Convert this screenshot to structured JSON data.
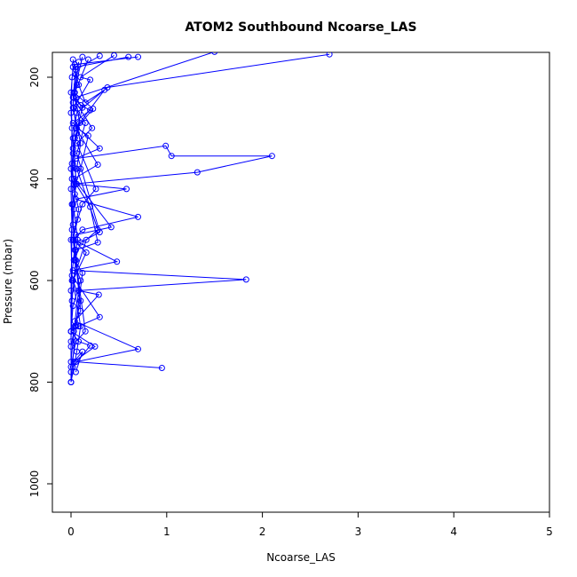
{
  "chart_data": {
    "type": "line",
    "title": "ATOM2 Southbound Ncoarse_LAS",
    "xlabel": "Ncoarse_LAS",
    "ylabel": "Pressure (mbar)",
    "xlim": [
      0,
      5
    ],
    "ylim": [
      1050,
      150
    ],
    "xticks": [
      0,
      1,
      2,
      3,
      4,
      5
    ],
    "yticks": [
      200,
      400,
      600,
      800,
      1000
    ],
    "grid": false,
    "colors": {
      "series": "#0000ff",
      "axes": "#000000"
    },
    "series": [
      {
        "x": [
          0.7,
          0.04,
          0.05,
          0.06,
          0.03,
          0.1,
          0.2,
          0.02,
          0.3,
          0.05,
          0.99,
          1.05,
          2.1,
          1.32,
          0.03,
          0.58,
          0.05,
          0.7,
          0.12,
          0.03,
          0.48,
          0.02,
          1.83,
          0.08,
          0.29,
          0.04,
          0.7,
          0.05,
          0.95
        ],
        "y": [
          160,
          175,
          195,
          215,
          240,
          255,
          265,
          290,
          340,
          360,
          335,
          355,
          355,
          387,
          410,
          420,
          440,
          475,
          500,
          520,
          563,
          580,
          598,
          620,
          628,
          680,
          735,
          760,
          772
        ]
      },
      {
        "x": [
          0.02,
          0.08,
          0.15,
          0.35,
          0.05,
          0.28,
          0.03,
          0.42,
          0.05,
          0.01,
          0.3,
          0.08,
          0.0,
          0.25,
          0.03,
          0.12,
          0.05
        ],
        "y": [
          165,
          215,
          250,
          225,
          300,
          372,
          400,
          495,
          510,
          590,
          672,
          690,
          700,
          730,
          760,
          740,
          780
        ]
      },
      {
        "x": [
          0.12,
          0.03,
          0.23,
          0.06,
          0.18,
          0.1,
          0.05,
          0.2,
          0.28,
          0.05,
          0.1,
          0.0,
          0.08,
          0.2,
          0.02
        ],
        "y": [
          160,
          230,
          262,
          300,
          315,
          380,
          410,
          455,
          525,
          540,
          660,
          700,
          720,
          728,
          770
        ]
      },
      {
        "x": [
          0.3,
          0.05,
          0.02,
          0.22,
          0.06,
          0.26,
          0.12,
          0.07,
          0.02,
          0.16,
          0.02,
          0.1,
          0.04,
          0.0
        ],
        "y": [
          158,
          185,
          240,
          300,
          330,
          420,
          450,
          480,
          520,
          545,
          600,
          640,
          690,
          730
        ]
      },
      {
        "x": [
          0.45,
          0.1,
          0.2,
          0.03,
          0.15,
          0.06,
          0.3,
          0.1,
          0.04,
          0.12,
          0.05,
          0.0
        ],
        "y": [
          157,
          200,
          205,
          260,
          290,
          350,
          505,
          525,
          560,
          585,
          690,
          800
        ]
      },
      {
        "x": [
          0.6,
          0.05,
          0.02,
          0.1,
          0.06,
          0.28,
          0.16,
          0.02,
          0.1,
          0.06,
          0.0
        ],
        "y": [
          160,
          180,
          260,
          330,
          380,
          500,
          520,
          600,
          690,
          740,
          800
        ]
      },
      {
        "x": [
          1.5,
          0.05,
          0.12,
          0.04,
          0.01,
          0.08,
          0.02,
          0.15,
          0.05,
          0.0
        ],
        "y": [
          150,
          240,
          260,
          320,
          400,
          460,
          520,
          700,
          720,
          770
        ]
      },
      {
        "x": [
          2.7,
          0.38,
          0.06,
          0.02,
          0.05,
          0.03,
          0.07,
          0.03,
          0.1,
          0.02,
          0.0
        ],
        "y": [
          155,
          220,
          270,
          320,
          380,
          460,
          520,
          560,
          600,
          650,
          700
        ]
      },
      {
        "x": [
          0.18,
          0.04,
          0.09,
          0.02,
          0.06,
          0.01,
          0.04,
          0.08,
          0.03,
          0.0
        ],
        "y": [
          165,
          230,
          290,
          350,
          410,
          450,
          540,
          620,
          700,
          760
        ]
      },
      {
        "x": [
          0.08,
          0.02,
          0.06,
          0.01,
          0.04,
          0.02,
          0.05,
          0.01,
          0.0
        ],
        "y": [
          170,
          250,
          310,
          370,
          430,
          490,
          560,
          640,
          720
        ]
      },
      {
        "x": [
          0.02,
          0.0,
          0.01,
          0.0,
          0.02,
          0.0,
          0.01,
          0.0,
          0.0
        ],
        "y": [
          180,
          230,
          300,
          380,
          450,
          520,
          600,
          700,
          800
        ]
      },
      {
        "x": [
          0.01,
          0.0,
          0.02,
          0.0,
          0.01,
          0.0,
          0.0
        ],
        "y": [
          200,
          270,
          340,
          420,
          500,
          620,
          780
        ]
      }
    ]
  }
}
